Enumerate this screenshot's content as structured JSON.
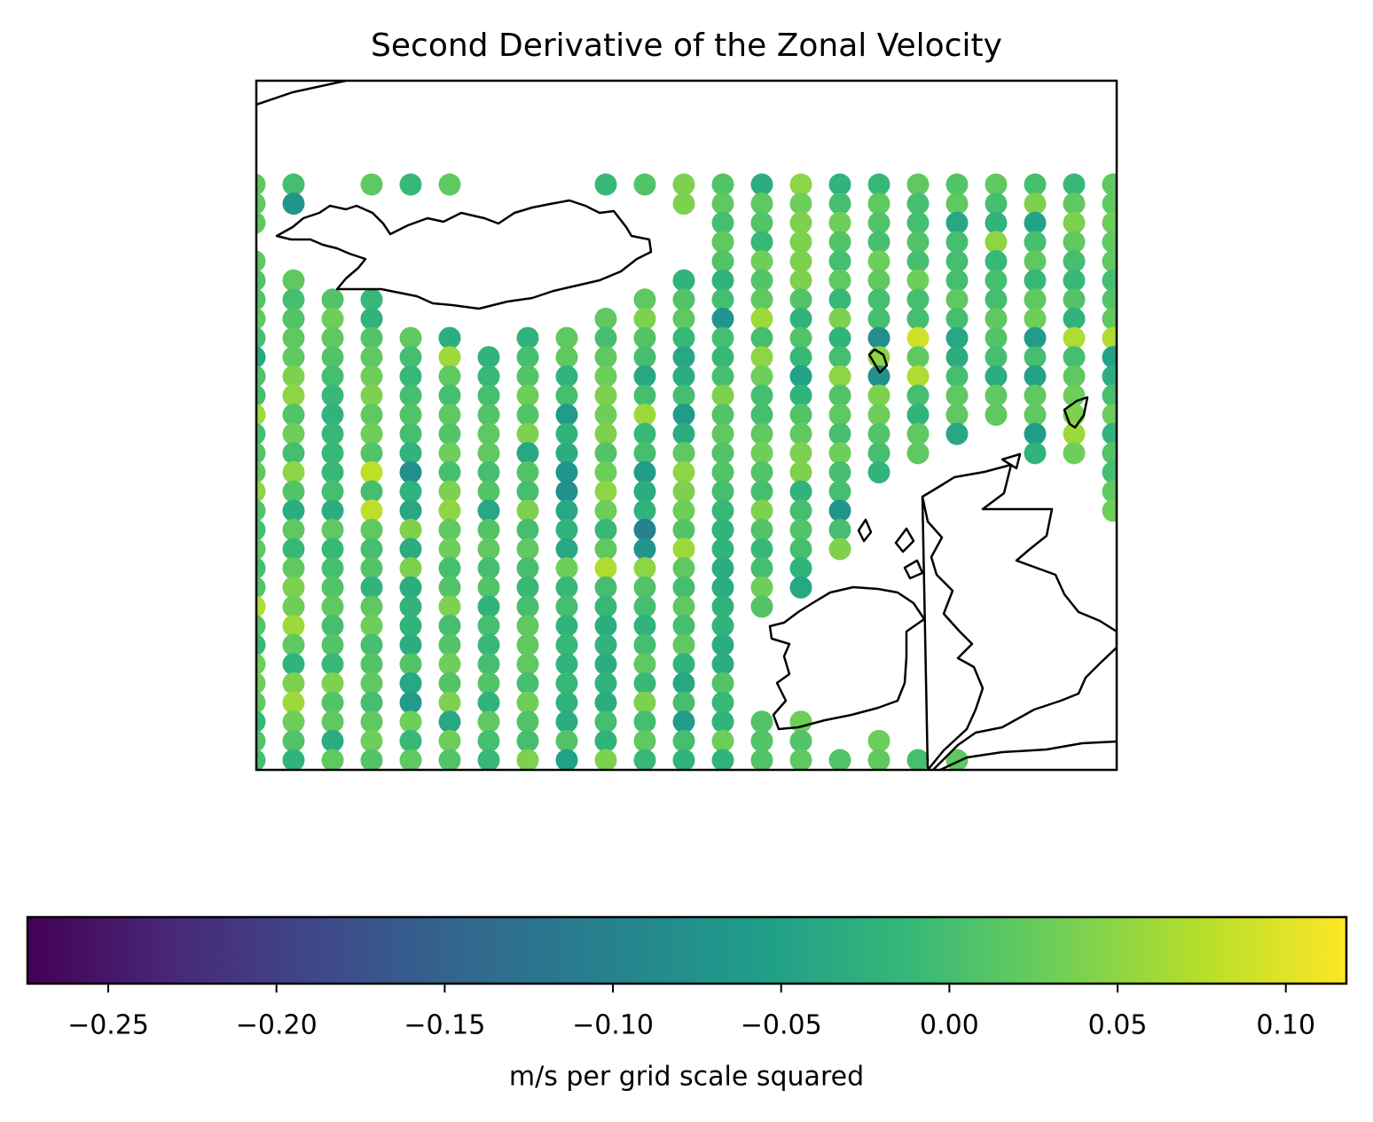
{
  "chart_data": {
    "type": "scatter-grid",
    "title": "Second Derivative of the Zonal Velocity",
    "colorbar_label": "m/s per grid scale squared",
    "colormap": "viridis",
    "clim": [
      -0.274,
      0.118
    ],
    "cticks": [
      {
        "value": -0.25,
        "label": "−0.25"
      },
      {
        "value": -0.2,
        "label": "−0.20"
      },
      {
        "value": -0.15,
        "label": "−0.15"
      },
      {
        "value": -0.1,
        "label": "−0.10"
      },
      {
        "value": -0.05,
        "label": "−0.05"
      },
      {
        "value": 0,
        "label": "0.00"
      },
      {
        "value": 0.05,
        "label": "0.05"
      },
      {
        "value": 0.1,
        "label": "0.10"
      }
    ],
    "columns": [
      [
        0.02,
        0.02,
        0.02,
        null,
        0.02,
        0.01,
        0.01,
        0.02,
        0.0,
        -0.04,
        0.01,
        0.0,
        0.06,
        0.0,
        0.01,
        0.02,
        0.05,
        0.01,
        0.0,
        0.02,
        0.0,
        0.01,
        0.07,
        0.01,
        -0.01,
        0.03,
        0.03,
        0.02,
        -0.01,
        0.01,
        0.0
      ],
      [
        0.0,
        -0.07,
        null,
        null,
        null,
        0.02,
        0.0,
        0.01,
        0.02,
        0.02,
        0.04,
        0.05,
        0.01,
        0.03,
        0.0,
        0.05,
        0.01,
        -0.03,
        0.02,
        -0.01,
        0.02,
        0.04,
        0.03,
        0.06,
        0.02,
        -0.02,
        0.04,
        0.06,
        0.03,
        0.01,
        -0.02
      ],
      [
        null,
        null,
        null,
        null,
        null,
        null,
        0.01,
        0.03,
        0.02,
        0.01,
        0.0,
        -0.01,
        -0.02,
        -0.01,
        -0.01,
        -0.01,
        0.0,
        -0.03,
        0.02,
        -0.01,
        0.0,
        0.01,
        0.02,
        0.0,
        0.01,
        -0.01,
        0.04,
        0.01,
        0.02,
        -0.03,
        0.02
      ],
      [
        0.02,
        null,
        null,
        null,
        null,
        null,
        -0.01,
        -0.02,
        0.01,
        0.02,
        0.03,
        0.04,
        0.02,
        0.03,
        0.01,
        0.08,
        0.0,
        0.08,
        0.02,
        0.0,
        0.01,
        -0.02,
        0.02,
        0.03,
        0.0,
        0.01,
        0.02,
        0.0,
        0.02,
        0.03,
        0.01
      ],
      [
        -0.01,
        null,
        null,
        null,
        null,
        null,
        null,
        null,
        0.02,
        0.0,
        -0.01,
        0.0,
        0.01,
        0.0,
        -0.02,
        -0.08,
        -0.02,
        -0.04,
        0.04,
        -0.03,
        0.04,
        -0.03,
        -0.02,
        -0.02,
        -0.03,
        0.01,
        -0.04,
        -0.06,
        0.03,
        -0.01,
        0.02
      ],
      [
        0.02,
        null,
        null,
        null,
        null,
        null,
        null,
        null,
        -0.03,
        0.06,
        0.02,
        0.0,
        0.02,
        0.01,
        0.03,
        0.0,
        0.04,
        0.05,
        0.02,
        0.03,
        0.0,
        0.01,
        0.04,
        0.0,
        0.01,
        0.03,
        0.01,
        0.04,
        -0.04,
        0.03,
        0.01
      ],
      [
        null,
        null,
        null,
        null,
        null,
        null,
        null,
        null,
        null,
        -0.02,
        -0.01,
        0.0,
        0.01,
        0.02,
        0.02,
        0.0,
        0.01,
        -0.04,
        0.01,
        0.02,
        0.0,
        0.01,
        -0.02,
        0.0,
        -0.01,
        0.0,
        0.01,
        -0.02,
        0.02,
        0.0,
        -0.01
      ],
      [
        null,
        null,
        null,
        null,
        null,
        null,
        null,
        null,
        -0.02,
        0.0,
        0.01,
        0.03,
        0.01,
        0.04,
        -0.04,
        0.01,
        0.0,
        0.04,
        0.0,
        0.02,
        0.0,
        -0.01,
        0.0,
        0.02,
        0.02,
        0.02,
        0.0,
        0.03,
        0.01,
        0.0,
        0.04
      ],
      [
        null,
        null,
        null,
        null,
        null,
        null,
        null,
        null,
        0.02,
        0.02,
        -0.02,
        0.0,
        -0.06,
        -0.02,
        -0.03,
        -0.07,
        -0.08,
        -0.04,
        -0.02,
        -0.04,
        0.03,
        -0.01,
        0.0,
        -0.02,
        -0.01,
        -0.02,
        -0.01,
        -0.02,
        -0.03,
        0.01,
        -0.05
      ],
      [
        -0.01,
        null,
        null,
        null,
        null,
        null,
        null,
        0.02,
        0.0,
        0.02,
        0.03,
        0.04,
        0.03,
        0.04,
        0.01,
        0.03,
        0.05,
        0.03,
        -0.01,
        0.02,
        0.07,
        0.0,
        -0.01,
        -0.03,
        -0.02,
        -0.03,
        -0.02,
        -0.03,
        0.0,
        -0.02,
        0.04
      ],
      [
        0.01,
        null,
        null,
        null,
        null,
        null,
        0.02,
        0.04,
        0.01,
        0.0,
        -0.04,
        0.0,
        0.06,
        -0.01,
        0.0,
        -0.06,
        -0.03,
        -0.02,
        -0.1,
        -0.07,
        0.05,
        0.01,
        0.0,
        -0.02,
        0.0,
        0.02,
        -0.01,
        0.04,
        0.0,
        0.02,
        -0.01
      ],
      [
        0.04,
        0.04,
        null,
        null,
        null,
        -0.02,
        0.01,
        0.02,
        -0.01,
        -0.04,
        -0.03,
        0.0,
        -0.06,
        -0.03,
        0.02,
        0.05,
        0.04,
        0.03,
        0.01,
        0.06,
        0.02,
        0.0,
        0.02,
        0.0,
        0.02,
        -0.02,
        -0.04,
        0.0,
        -0.06,
        0.0,
        -0.02
      ],
      [
        0.01,
        0.02,
        0.0,
        0.02,
        0.01,
        -0.02,
        0.0,
        -0.07,
        0.0,
        -0.01,
        0.0,
        0.04,
        0.01,
        0.02,
        0.01,
        0.01,
        0.0,
        -0.01,
        -0.02,
        -0.02,
        -0.03,
        -0.03,
        -0.02,
        -0.02,
        -0.03,
        -0.03,
        0.01,
        -0.01,
        -0.02,
        0.03,
        -0.02
      ],
      [
        -0.03,
        0.02,
        0.01,
        -0.01,
        0.03,
        0.01,
        0.02,
        0.06,
        0.0,
        0.05,
        0.03,
        0.0,
        0.0,
        0.02,
        0.03,
        0.01,
        0.0,
        0.04,
        0.01,
        -0.01,
        0.0,
        0.03,
        0.01,
        null,
        null,
        null,
        null,
        null,
        0.01,
        0.01,
        0.01
      ],
      [
        0.05,
        0.03,
        0.04,
        0.04,
        0.04,
        0.04,
        0.01,
        -0.02,
        0.01,
        -0.01,
        -0.05,
        -0.02,
        0.01,
        0.02,
        0.04,
        0.04,
        -0.02,
        0.0,
        0.01,
        0.0,
        -0.02,
        -0.04,
        null,
        null,
        null,
        null,
        null,
        null,
        0.03,
        0.01,
        0.02
      ],
      [
        -0.02,
        0.0,
        0.03,
        0.01,
        0.0,
        0.02,
        -0.01,
        0.04,
        -0.02,
        0.0,
        0.05,
        0.01,
        0.02,
        0.0,
        0.03,
        0.0,
        0.0,
        -0.07,
        0.0,
        0.04,
        null,
        null,
        null,
        null,
        null,
        null,
        null,
        null,
        null,
        null,
        0.01
      ],
      [
        -0.01,
        0.02,
        0.01,
        0.0,
        0.03,
        0.02,
        0.0,
        0.0,
        -0.08,
        0.05,
        -0.08,
        0.04,
        0.03,
        0.01,
        0.0,
        -0.02,
        null,
        null,
        null,
        null,
        null,
        null,
        null,
        null,
        null,
        null,
        null,
        null,
        null,
        0.03,
        0.02
      ],
      [
        0.02,
        0.0,
        0.0,
        0.01,
        0.0,
        0.03,
        0.0,
        0.0,
        0.09,
        0.02,
        0.07,
        0.0,
        -0.02,
        0.02,
        0.02,
        null,
        null,
        null,
        null,
        null,
        null,
        null,
        null,
        null,
        null,
        null,
        null,
        null,
        null,
        null,
        0.0
      ],
      [
        0.01,
        0.02,
        -0.04,
        0.0,
        0.0,
        0.0,
        0.02,
        0.0,
        -0.04,
        -0.03,
        0.0,
        0.02,
        0.02,
        -0.04,
        null,
        null,
        null,
        null,
        null,
        null,
        null,
        null,
        null,
        null,
        null,
        null,
        null,
        null,
        null,
        null,
        0.02
      ],
      [
        0.02,
        0.0,
        -0.02,
        0.05,
        -0.01,
        0.0,
        0.0,
        0.02,
        0.01,
        0.0,
        -0.03,
        0.02,
        0.02,
        null,
        null,
        null,
        null,
        null,
        null,
        null,
        null,
        null,
        null,
        null,
        null,
        null,
        null,
        null,
        null,
        null,
        null
      ],
      [
        0.0,
        0.04,
        -0.05,
        0.0,
        0.02,
        -0.01,
        0.02,
        0.03,
        -0.06,
        0.0,
        -0.05,
        0.02,
        0.02,
        -0.06,
        -0.02,
        null,
        null,
        null,
        null,
        null,
        null,
        null,
        null,
        null,
        null,
        null,
        null,
        null,
        null,
        null,
        null
      ],
      [
        -0.01,
        0.02,
        0.04,
        0.02,
        0.0,
        -0.01,
        0.01,
        -0.02,
        0.07,
        0.0,
        0.02,
        0.03,
        0.04,
        0.06,
        0.03,
        null,
        null,
        null,
        null,
        null,
        null,
        null,
        null,
        null,
        null,
        null,
        null,
        null,
        null,
        null,
        null
      ],
      [
        0.02,
        0.02,
        0.03,
        0.02,
        0.02,
        0.0,
        0.01,
        0.02,
        0.07,
        -0.05,
        -0.03,
        0.0,
        0.03,
        -0.02,
        0.01,
        0.0,
        0.02,
        0.03,
        null,
        null,
        null,
        null,
        null,
        null,
        null,
        null,
        null,
        null,
        null,
        null,
        null
      ]
    ]
  }
}
